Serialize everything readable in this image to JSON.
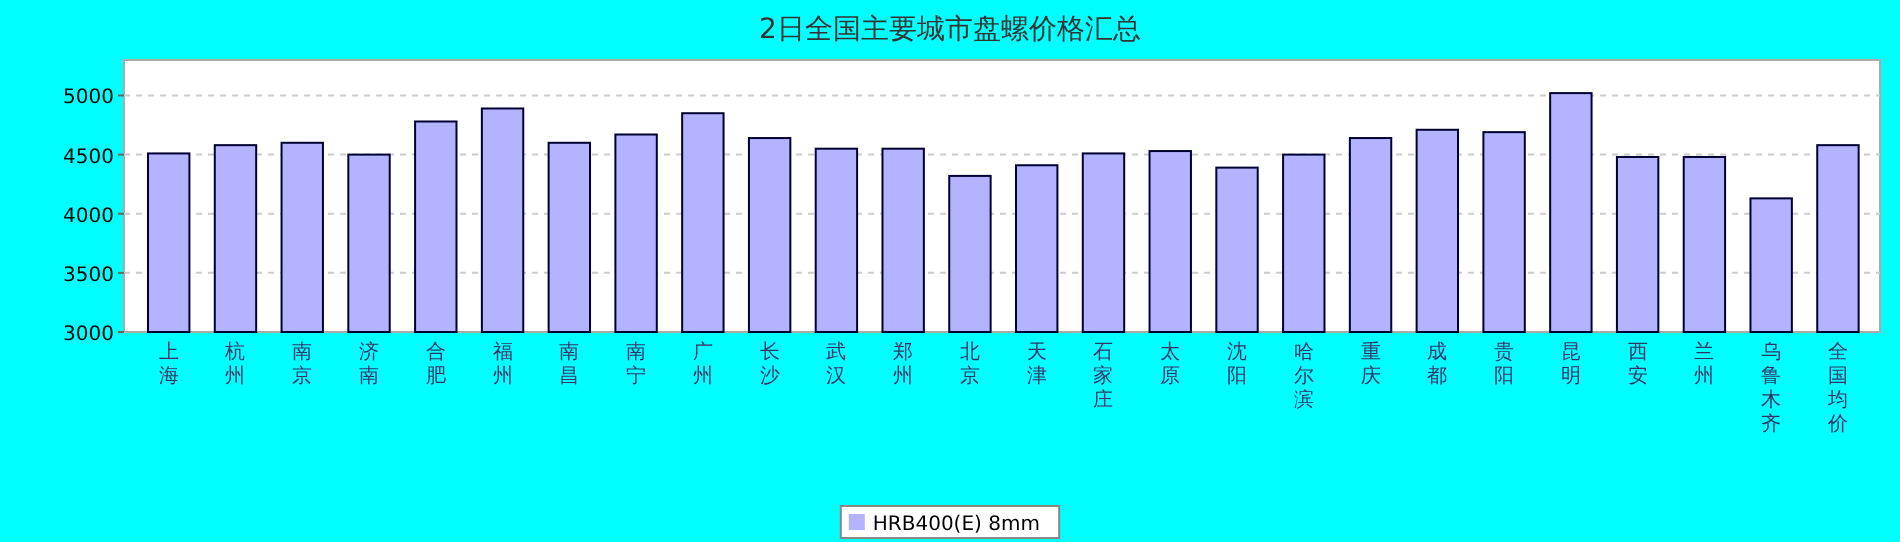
{
  "chart_data": {
    "type": "bar",
    "title": "2日全国主要城市盘螺价格汇总",
    "categories": [
      "上海",
      "杭州",
      "南京",
      "济南",
      "合肥",
      "福州",
      "南昌",
      "南宁",
      "广州",
      "长沙",
      "武汉",
      "郑州",
      "北京",
      "天津",
      "石家庄",
      "太原",
      "沈阳",
      "哈尔滨",
      "重庆",
      "成都",
      "贵阳",
      "昆明",
      "西安",
      "兰州",
      "乌鲁木齐",
      "全国均价"
    ],
    "series": [
      {
        "name": "HRB400(E) 8mm",
        "color": "#b3b3ff",
        "values": [
          4510,
          4580,
          4600,
          4500,
          4780,
          4890,
          4600,
          4670,
          4850,
          4640,
          4550,
          4550,
          4320,
          4410,
          4510,
          4530,
          4390,
          4500,
          4640,
          4710,
          4690,
          5020,
          4480,
          4480,
          4130,
          4580
        ]
      }
    ],
    "ylim": [
      3000,
      5300
    ],
    "yticks": [
      3000,
      3500,
      4000,
      4500,
      5000
    ],
    "grid": "y",
    "legend": "bottom"
  }
}
